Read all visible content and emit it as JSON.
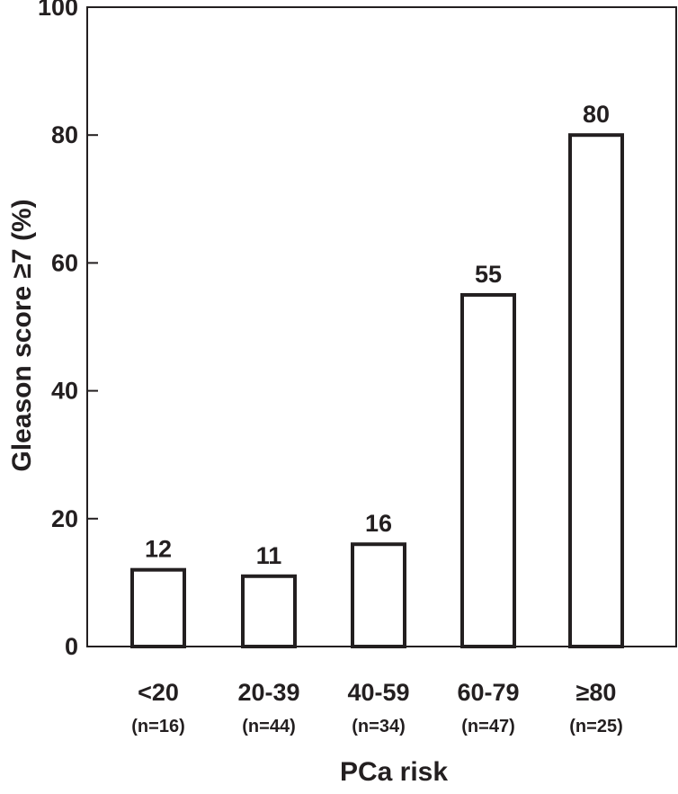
{
  "chart_data": {
    "type": "bar",
    "categories": [
      "<20",
      "20-39",
      "40-59",
      "60-79",
      "≥80"
    ],
    "category_counts": [
      "(n=16)",
      "(n=44)",
      "(n=34)",
      "(n=47)",
      "(n=25)"
    ],
    "values": [
      12,
      11,
      16,
      55,
      80
    ],
    "data_labels": [
      "12",
      "11",
      "16",
      "55",
      "80"
    ],
    "title": "",
    "xlabel": "PCa risk",
    "ylabel": "Gleason score ≥7 (%)",
    "ylim": [
      0,
      100
    ],
    "yticks": [
      "0",
      "20",
      "40",
      "60",
      "80",
      "100"
    ],
    "grid": false,
    "legend": "none",
    "colors": {
      "bar_fill": "#ffffff",
      "bar_stroke": "#231f20",
      "axis": "#231f20",
      "text": "#231f20"
    }
  }
}
